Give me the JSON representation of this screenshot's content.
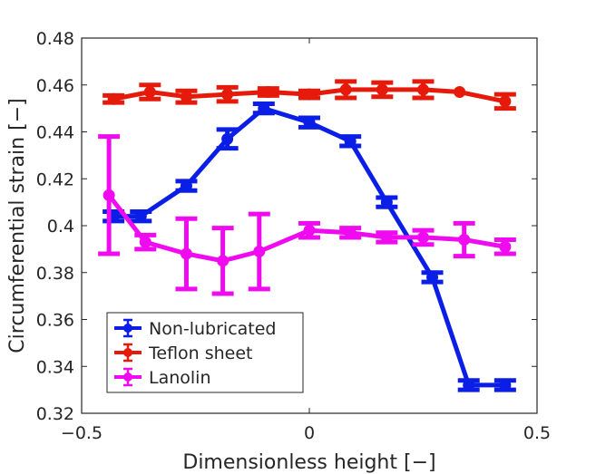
{
  "chart_data": {
    "type": "line",
    "xlabel": "Dimensionless height [−]",
    "ylabel": "Circumferential strain [−]",
    "xlim": [
      -0.5,
      0.5
    ],
    "ylim": [
      0.32,
      0.48
    ],
    "xticks": [
      -0.5,
      0,
      0.5
    ],
    "xtick_labels": [
      "−0.5",
      "0",
      "0.5"
    ],
    "yticks": [
      0.32,
      0.34,
      0.36,
      0.38,
      0.4,
      0.42,
      0.44,
      0.46,
      0.48
    ],
    "ytick_labels": [
      "0.32",
      "0.34",
      "0.36",
      "0.38",
      "0.4",
      "0.42",
      "0.44",
      "0.46",
      "0.48"
    ],
    "grid": false,
    "legend_position": "bottom-left",
    "series": [
      {
        "name": "Non-lubricated",
        "color": "#0a1ee6",
        "x": [
          -0.43,
          -0.37,
          -0.27,
          -0.18,
          -0.1,
          0.0,
          0.09,
          0.17,
          0.27,
          0.35,
          0.43
        ],
        "y": [
          0.404,
          0.404,
          0.417,
          0.437,
          0.45,
          0.444,
          0.436,
          0.41,
          0.378,
          0.332,
          0.332
        ],
        "err": [
          0.002,
          0.002,
          0.002,
          0.004,
          0.002,
          0.002,
          0.002,
          0.002,
          0.002,
          0.002,
          0.002
        ]
      },
      {
        "name": "Teflon sheet",
        "color": "#e61a0a",
        "x": [
          -0.43,
          -0.35,
          -0.27,
          -0.18,
          -0.09,
          0.0,
          0.08,
          0.16,
          0.25,
          0.33,
          0.43
        ],
        "y": [
          0.454,
          0.457,
          0.455,
          0.456,
          0.457,
          0.456,
          0.458,
          0.458,
          0.458,
          0.457,
          0.453
        ],
        "err": [
          0.0015,
          0.003,
          0.0025,
          0.003,
          0.0015,
          0.0015,
          0.0035,
          0.003,
          0.0035,
          0.0,
          0.003
        ]
      },
      {
        "name": "Lanolin",
        "color": "#f00af0",
        "x": [
          -0.44,
          -0.36,
          -0.27,
          -0.19,
          -0.11,
          0.0,
          0.09,
          0.17,
          0.25,
          0.34,
          0.43
        ],
        "y": [
          0.413,
          0.393,
          0.388,
          0.385,
          0.389,
          0.398,
          0.397,
          0.395,
          0.395,
          0.394,
          0.391
        ],
        "err": [
          0.025,
          0.003,
          0.015,
          0.014,
          0.016,
          0.003,
          0.002,
          0.002,
          0.003,
          0.007,
          0.003
        ]
      }
    ]
  }
}
